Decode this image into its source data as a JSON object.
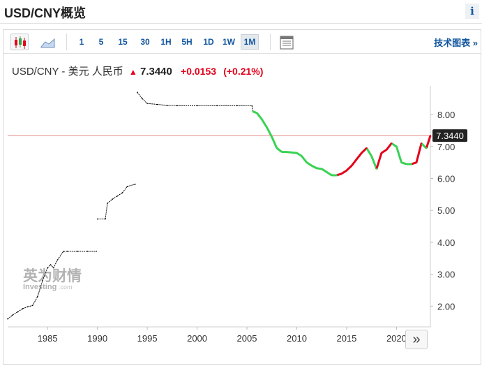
{
  "header": {
    "title": "USD/CNY概览",
    "info_label": "i"
  },
  "toolbar": {
    "ranges": [
      "1",
      "5",
      "15",
      "30",
      "1H",
      "5H",
      "1D",
      "1W",
      "1M"
    ],
    "active_range": "1M",
    "tools_label": "技术图表 »"
  },
  "quote": {
    "name": "USD/CNY - 美元 人民币",
    "arrow": "▲",
    "price": "7.3440",
    "change": "+0.0153",
    "change_pct": "(+0.21%)"
  },
  "watermark": {
    "cn": "英为财情",
    "en": "Investing",
    "suffix": ".com"
  },
  "next_label": "»",
  "colors": {
    "up": "#e3001b",
    "down": "#39d353",
    "line": "#000000",
    "price_line": "#e88a8a",
    "price_tag_bg": "#222222"
  },
  "chart_data": {
    "type": "line",
    "x_ticks": [
      1985,
      1990,
      1995,
      2000,
      2005,
      2010,
      2015,
      2020
    ],
    "y_ticks": [
      "2.00",
      "3.00",
      "4.00",
      "5.00",
      "6.00",
      "7.00",
      "8.00"
    ],
    "xlim": [
      1981,
      2023.4
    ],
    "ylim": [
      1.35,
      8.9
    ],
    "current_price": 7.344,
    "current_label": "7.3440",
    "x": [
      1981.0,
      1981.5,
      1982.0,
      1982.5,
      1983.0,
      1983.5,
      1984.0,
      1984.5,
      1985.0,
      1985.3,
      1985.6,
      1986.0,
      1986.6,
      1987.0,
      1988.0,
      1989.0,
      1989.9,
      1990.0,
      1990.8,
      1991.0,
      1991.5,
      1992.0,
      1992.5,
      1993.0,
      1993.8,
      1994.0,
      1994.5,
      1995.0,
      1996.0,
      1997.0,
      1998.0,
      2000.0,
      2002.0,
      2004.0,
      2005.5,
      2005.6,
      2006.0,
      2006.5,
      2007.0,
      2007.5,
      2008.0,
      2008.5,
      2009.0,
      2010.0,
      2010.5,
      2011.0,
      2011.5,
      2012.0,
      2012.5,
      2013.0,
      2013.5,
      2014.0,
      2014.5,
      2015.0,
      2015.5,
      2016.0,
      2016.5,
      2017.0,
      2017.5,
      2018.0,
      2018.5,
      2019.0,
      2019.5,
      2020.0,
      2020.5,
      2021.0,
      2021.5,
      2022.0,
      2022.5,
      2023.0,
      2023.4
    ],
    "y": [
      1.6,
      1.72,
      1.82,
      1.92,
      1.98,
      2.02,
      2.3,
      2.8,
      3.2,
      3.3,
      3.2,
      3.45,
      3.72,
      3.72,
      3.72,
      3.72,
      3.72,
      4.73,
      4.73,
      5.22,
      5.35,
      5.45,
      5.55,
      5.75,
      5.82,
      8.7,
      8.5,
      8.35,
      8.32,
      8.29,
      8.28,
      8.28,
      8.28,
      8.28,
      8.28,
      8.1,
      8.05,
      7.85,
      7.6,
      7.3,
      6.95,
      6.83,
      6.83,
      6.8,
      6.7,
      6.5,
      6.4,
      6.32,
      6.3,
      6.2,
      6.1,
      6.1,
      6.15,
      6.25,
      6.4,
      6.6,
      6.8,
      6.95,
      6.7,
      6.3,
      6.8,
      6.9,
      7.1,
      7.0,
      6.5,
      6.45,
      6.45,
      6.5,
      7.1,
      6.95,
      7.34
    ]
  }
}
